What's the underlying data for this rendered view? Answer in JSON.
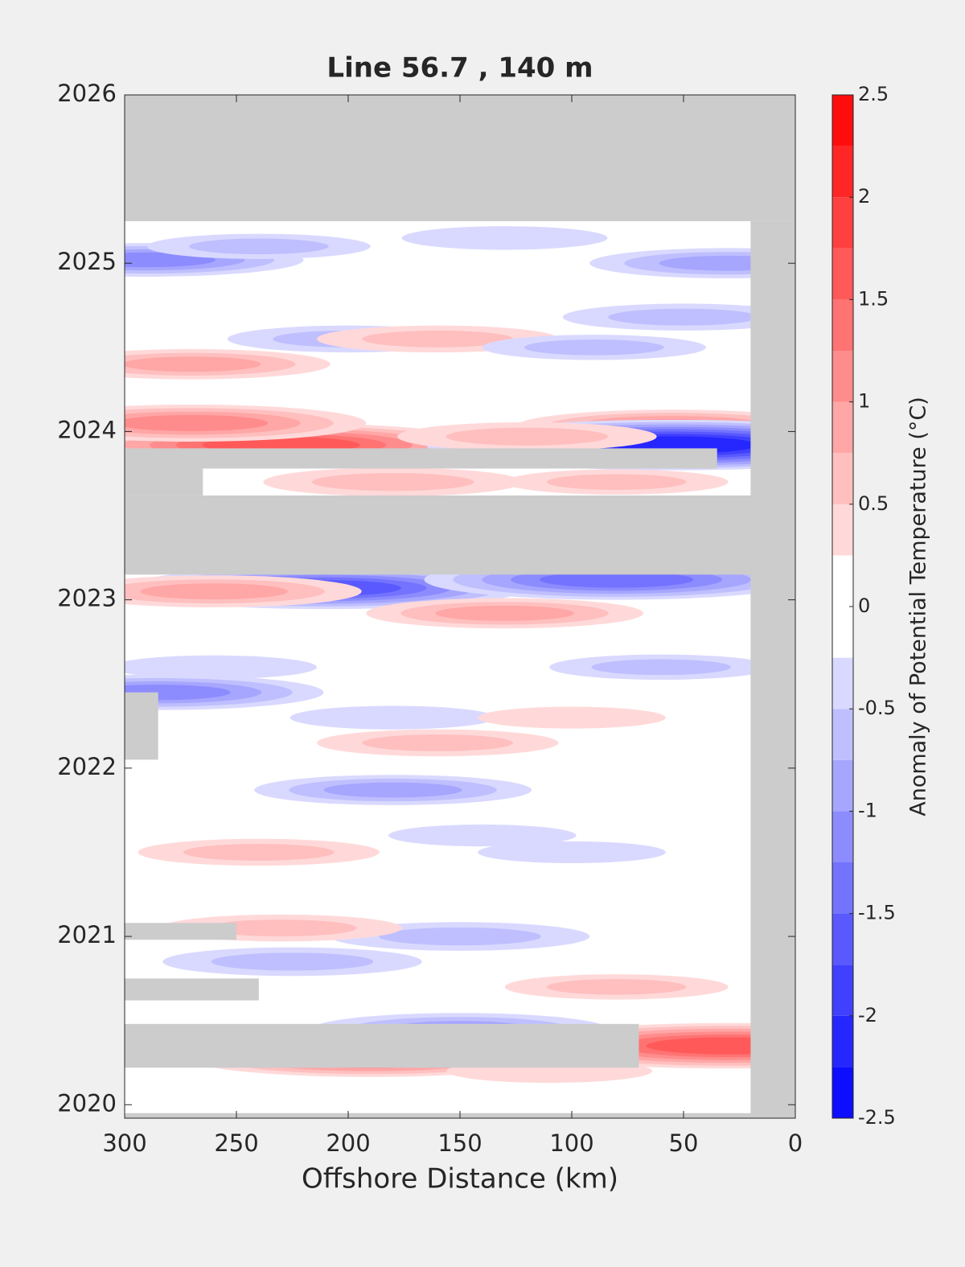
{
  "chart_data": {
    "type": "contour",
    "title": "Line 56.7 , 140 m",
    "x_label": "Offshore Distance (km)",
    "colorbar_label": "Anomaly of Potential Temperature (°C)",
    "xlim": [
      300,
      0
    ],
    "xticks": [
      300,
      250,
      200,
      150,
      100,
      50,
      0
    ],
    "ylim": [
      2019.92,
      2026
    ],
    "yticks": [
      2020,
      2021,
      2022,
      2023,
      2024,
      2025,
      2026
    ],
    "clim": [
      -2.5,
      2.5
    ],
    "cticks": [
      -2.5,
      -2,
      -1.5,
      -1,
      -0.5,
      0,
      0.5,
      1,
      1.5,
      2,
      2.5
    ],
    "levels": [
      -2.5,
      -2.25,
      -2,
      -1.75,
      -1.5,
      -1.25,
      -1,
      -0.75,
      -0.5,
      -0.25,
      0.25,
      0.5,
      0.75,
      1,
      1.25,
      1.5,
      1.75,
      2,
      2.25,
      2.5
    ],
    "colormap": [
      "#0000ff",
      "#ffffff",
      "#ff0000"
    ],
    "no_data_color": "#cccccc",
    "anomalies": {
      "x": [
        230,
        270,
        55,
        55,
        30,
        190,
        210,
        80,
        260,
        130,
        285,
        180,
        150,
        225,
        150,
        290,
        30,
        200,
        240,
        130,
        270,
        160,
        120,
        180,
        80,
        50,
        90,
        240,
        160,
        230,
        80,
        110,
        260,
        60,
        140,
        180,
        100,
        100
      ],
      "y": [
        2023.92,
        2024.05,
        2024.03,
        2023.92,
        2020.35,
        2020.28,
        2023.07,
        2023.12,
        2023.05,
        2022.92,
        2022.45,
        2021.87,
        2021.0,
        2020.85,
        2020.45,
        2025.02,
        2025.0,
        2024.55,
        2025.1,
        2025.15,
        2024.4,
        2024.55,
        2023.97,
        2023.7,
        2023.7,
        2024.68,
        2024.5,
        2021.5,
        2022.15,
        2021.05,
        2020.7,
        2020.2,
        2022.6,
        2022.6,
        2021.6,
        2022.3,
        2022.3,
        2021.5
      ],
      "values": [
        1.6,
        1.2,
        1.0,
        -2.0,
        1.7,
        1.3,
        -1.5,
        -1.4,
        0.9,
        0.8,
        -1.1,
        -0.8,
        -0.7,
        -0.7,
        -0.9,
        -1.0,
        -0.8,
        -0.6,
        -0.5,
        -0.4,
        0.8,
        0.6,
        0.7,
        0.7,
        0.5,
        -0.6,
        -0.5,
        0.6,
        0.6,
        0.6,
        0.5,
        0.4,
        -0.4,
        -0.5,
        -0.3,
        -0.4,
        0.3,
        -0.3
      ]
    },
    "no_data": [
      [
        0,
        300,
        2025.25,
        2026
      ],
      [
        0,
        20,
        2019.92,
        2025.25
      ],
      [
        0,
        300,
        2023.15,
        2023.62
      ],
      [
        35,
        300,
        2023.78,
        2023.9
      ],
      [
        265,
        300,
        2023.62,
        2023.78
      ],
      [
        285,
        300,
        2022.05,
        2022.45
      ],
      [
        250,
        300,
        2020.98,
        2021.08
      ],
      [
        240,
        300,
        2020.62,
        2020.75
      ],
      [
        70,
        300,
        2020.22,
        2020.48
      ],
      [
        0,
        300,
        2019.92,
        2019.95
      ]
    ]
  }
}
